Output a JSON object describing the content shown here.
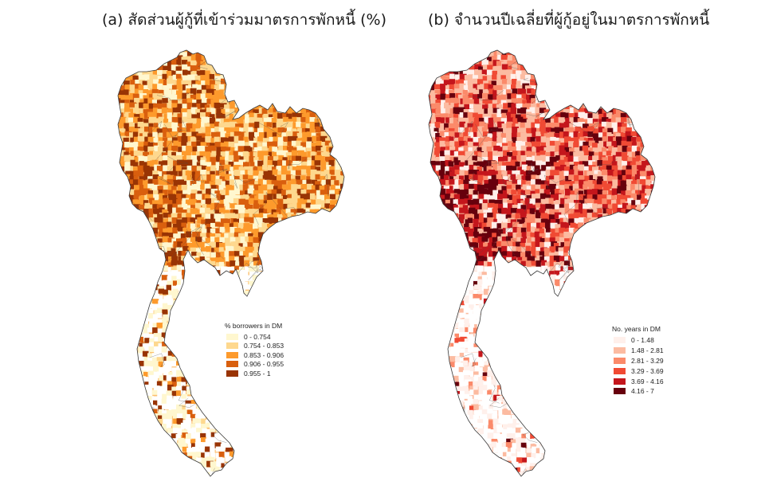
{
  "panels": [
    {
      "id": "a",
      "title": "(a) สัดส่วนผู้กู้ที่เข้าร่วมมาตรการพักหนี้ (%)",
      "legend": {
        "title": "% borrowers in DM",
        "classes": [
          {
            "label": "0 - 0.754",
            "color": "#fff7cf"
          },
          {
            "label": "0.754 - 0.853",
            "color": "#fed88e"
          },
          {
            "label": "0.853 - 0.906",
            "color": "#fd9a2c"
          },
          {
            "label": "0.906 - 0.955",
            "color": "#d95f0e"
          },
          {
            "label": "0.955 - 1",
            "color": "#993404"
          }
        ]
      }
    },
    {
      "id": "b",
      "title": "(b) จำนวนปีเฉลี่ยที่ผู้กู้อยู่ในมาตรการพักหนี้",
      "legend": {
        "title": "No. years in DM",
        "classes": [
          {
            "label": "0 - 1.48",
            "color": "#fff0eb"
          },
          {
            "label": "1.48 - 2.81",
            "color": "#fcbba1"
          },
          {
            "label": "2.81 - 3.29",
            "color": "#fb8a6a"
          },
          {
            "label": "3.29 - 3.69",
            "color": "#f04a34"
          },
          {
            "label": "3.69 - 4.16",
            "color": "#c4161c"
          },
          {
            "label": "4.16 - 7",
            "color": "#67000d"
          }
        ]
      }
    }
  ],
  "map": {
    "region": "Thailand",
    "unit": "sub-district choropleth with provincial boundaries",
    "border_color": "#3a3a3a"
  }
}
